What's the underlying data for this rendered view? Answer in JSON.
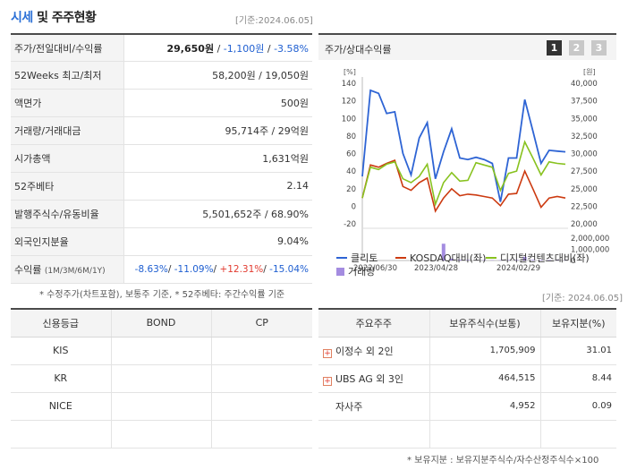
{
  "header": {
    "title_accent": "시세",
    "title_rest": " 및 주주현황",
    "base_date": "[기준:2024.06.05]"
  },
  "info_rows": [
    {
      "label": "주가/전일대비/수익률",
      "price": "29,650원",
      "sep1": " / ",
      "change": "-1,100원",
      "sep2": " / ",
      "rate": "-3.58%"
    },
    {
      "label": "52Weeks 최고/최저",
      "value": "58,200원 / 19,050원"
    },
    {
      "label": "액면가",
      "value": "500원"
    },
    {
      "label": "거래량/거래대금",
      "value": "95,714주 / 29억원"
    },
    {
      "label": "시가총액",
      "value": "1,631억원"
    },
    {
      "label": "52주베타",
      "value": "2.14"
    },
    {
      "label": "발행주식수/유동비율",
      "value": "5,501,652주 / 68.90%"
    },
    {
      "label": "외국인지분율",
      "value": "9.04%"
    },
    {
      "label": "수익률",
      "label_small": "(1M/3M/6M/1Y)",
      "r1": "-8.63%",
      "r2": "-11.09%",
      "r3": "+12.31%",
      "r4": "-15.04%",
      "sep": "/ "
    }
  ],
  "note_left": "* 수정주가(차트포함), 보통주 기준, * 52주베타: 주간수익률 기준",
  "chart_panel": {
    "title": "주가/상대수익률",
    "pages": [
      "1",
      "2",
      "3"
    ],
    "active_page": "1"
  },
  "chart_data": {
    "type": "line",
    "left_axis_unit": "[%]",
    "right_axis_unit": "[원]",
    "volume_axis_unit": "",
    "left_ticks": [
      "140",
      "120",
      "100",
      "80",
      "60",
      "40",
      "20",
      "0",
      "-20"
    ],
    "right_ticks": [
      "40,000",
      "37,500",
      "35,000",
      "32,500",
      "30,000",
      "27,500",
      "25,000",
      "22,500",
      "20,000"
    ],
    "volume_ticks": [
      "2,000,000",
      "1,000,000",
      "0"
    ],
    "x_labels": [
      "2022/06/30",
      "2023/04/28",
      "2024/02/29"
    ],
    "ylim": [
      -30,
      148
    ],
    "volume_lim": [
      0,
      2400000
    ],
    "series": [
      {
        "name": "클리토",
        "color": "#2e64d4",
        "values": [
          28,
          140,
          136,
          110,
          112,
          58,
          30,
          78,
          98,
          25,
          60,
          90,
          52,
          50,
          53,
          50,
          45,
          -5,
          52,
          52,
          128,
          87,
          45,
          62,
          61,
          60
        ]
      },
      {
        "name": "KOSDAQ대비(좌)",
        "color": "#cc3a10",
        "values": [
          0,
          43,
          40,
          45,
          49,
          15,
          10,
          20,
          26,
          -17,
          0,
          12,
          3,
          5,
          4,
          2,
          0,
          -10,
          5,
          6,
          35,
          12,
          -12,
          0,
          2,
          0
        ]
      },
      {
        "name": "디지털컨텐츠대비(좌)",
        "color": "#88c21f",
        "values": [
          0,
          40,
          37,
          44,
          47,
          25,
          20,
          28,
          44,
          -8,
          20,
          33,
          22,
          23,
          46,
          43,
          40,
          10,
          32,
          35,
          73,
          52,
          30,
          47,
          45,
          44
        ]
      }
    ],
    "volume_series": {
      "name": "거래량",
      "color": "#a48ce0",
      "values": [
        0,
        0,
        0,
        0,
        0,
        0,
        0,
        0,
        0,
        0,
        1800000,
        200000,
        80000,
        60000,
        60000,
        50000,
        40000,
        40000,
        50000,
        60000,
        400000,
        80000,
        60000,
        50000,
        40000,
        30000
      ]
    }
  },
  "credit_table": {
    "headers": [
      "신용등급",
      "BOND",
      "CP"
    ],
    "rows": [
      [
        "KIS",
        "",
        ""
      ],
      [
        "KR",
        "",
        ""
      ],
      [
        "NICE",
        "",
        ""
      ],
      [
        "",
        "",
        ""
      ]
    ]
  },
  "base_date_mid": "[기준: 2024.06.05]",
  "holders_table": {
    "headers": [
      "주요주주",
      "보유주식수(보통)",
      "보유지분(%)"
    ],
    "rows": [
      {
        "expand": true,
        "name": "이정수 외 2인",
        "shares": "1,705,909",
        "pct": "31.01"
      },
      {
        "expand": true,
        "name": "UBS AG 외 3인",
        "shares": "464,515",
        "pct": "8.44"
      },
      {
        "expand": false,
        "name": "자사주",
        "shares": "4,952",
        "pct": "0.09"
      },
      {
        "expand": false,
        "name": "",
        "shares": "",
        "pct": ""
      }
    ]
  },
  "note_bottom": "* 보유지분 : 보유지분주식수/자수산정주식수×100",
  "icons": {
    "expand": "plus-box-icon"
  }
}
